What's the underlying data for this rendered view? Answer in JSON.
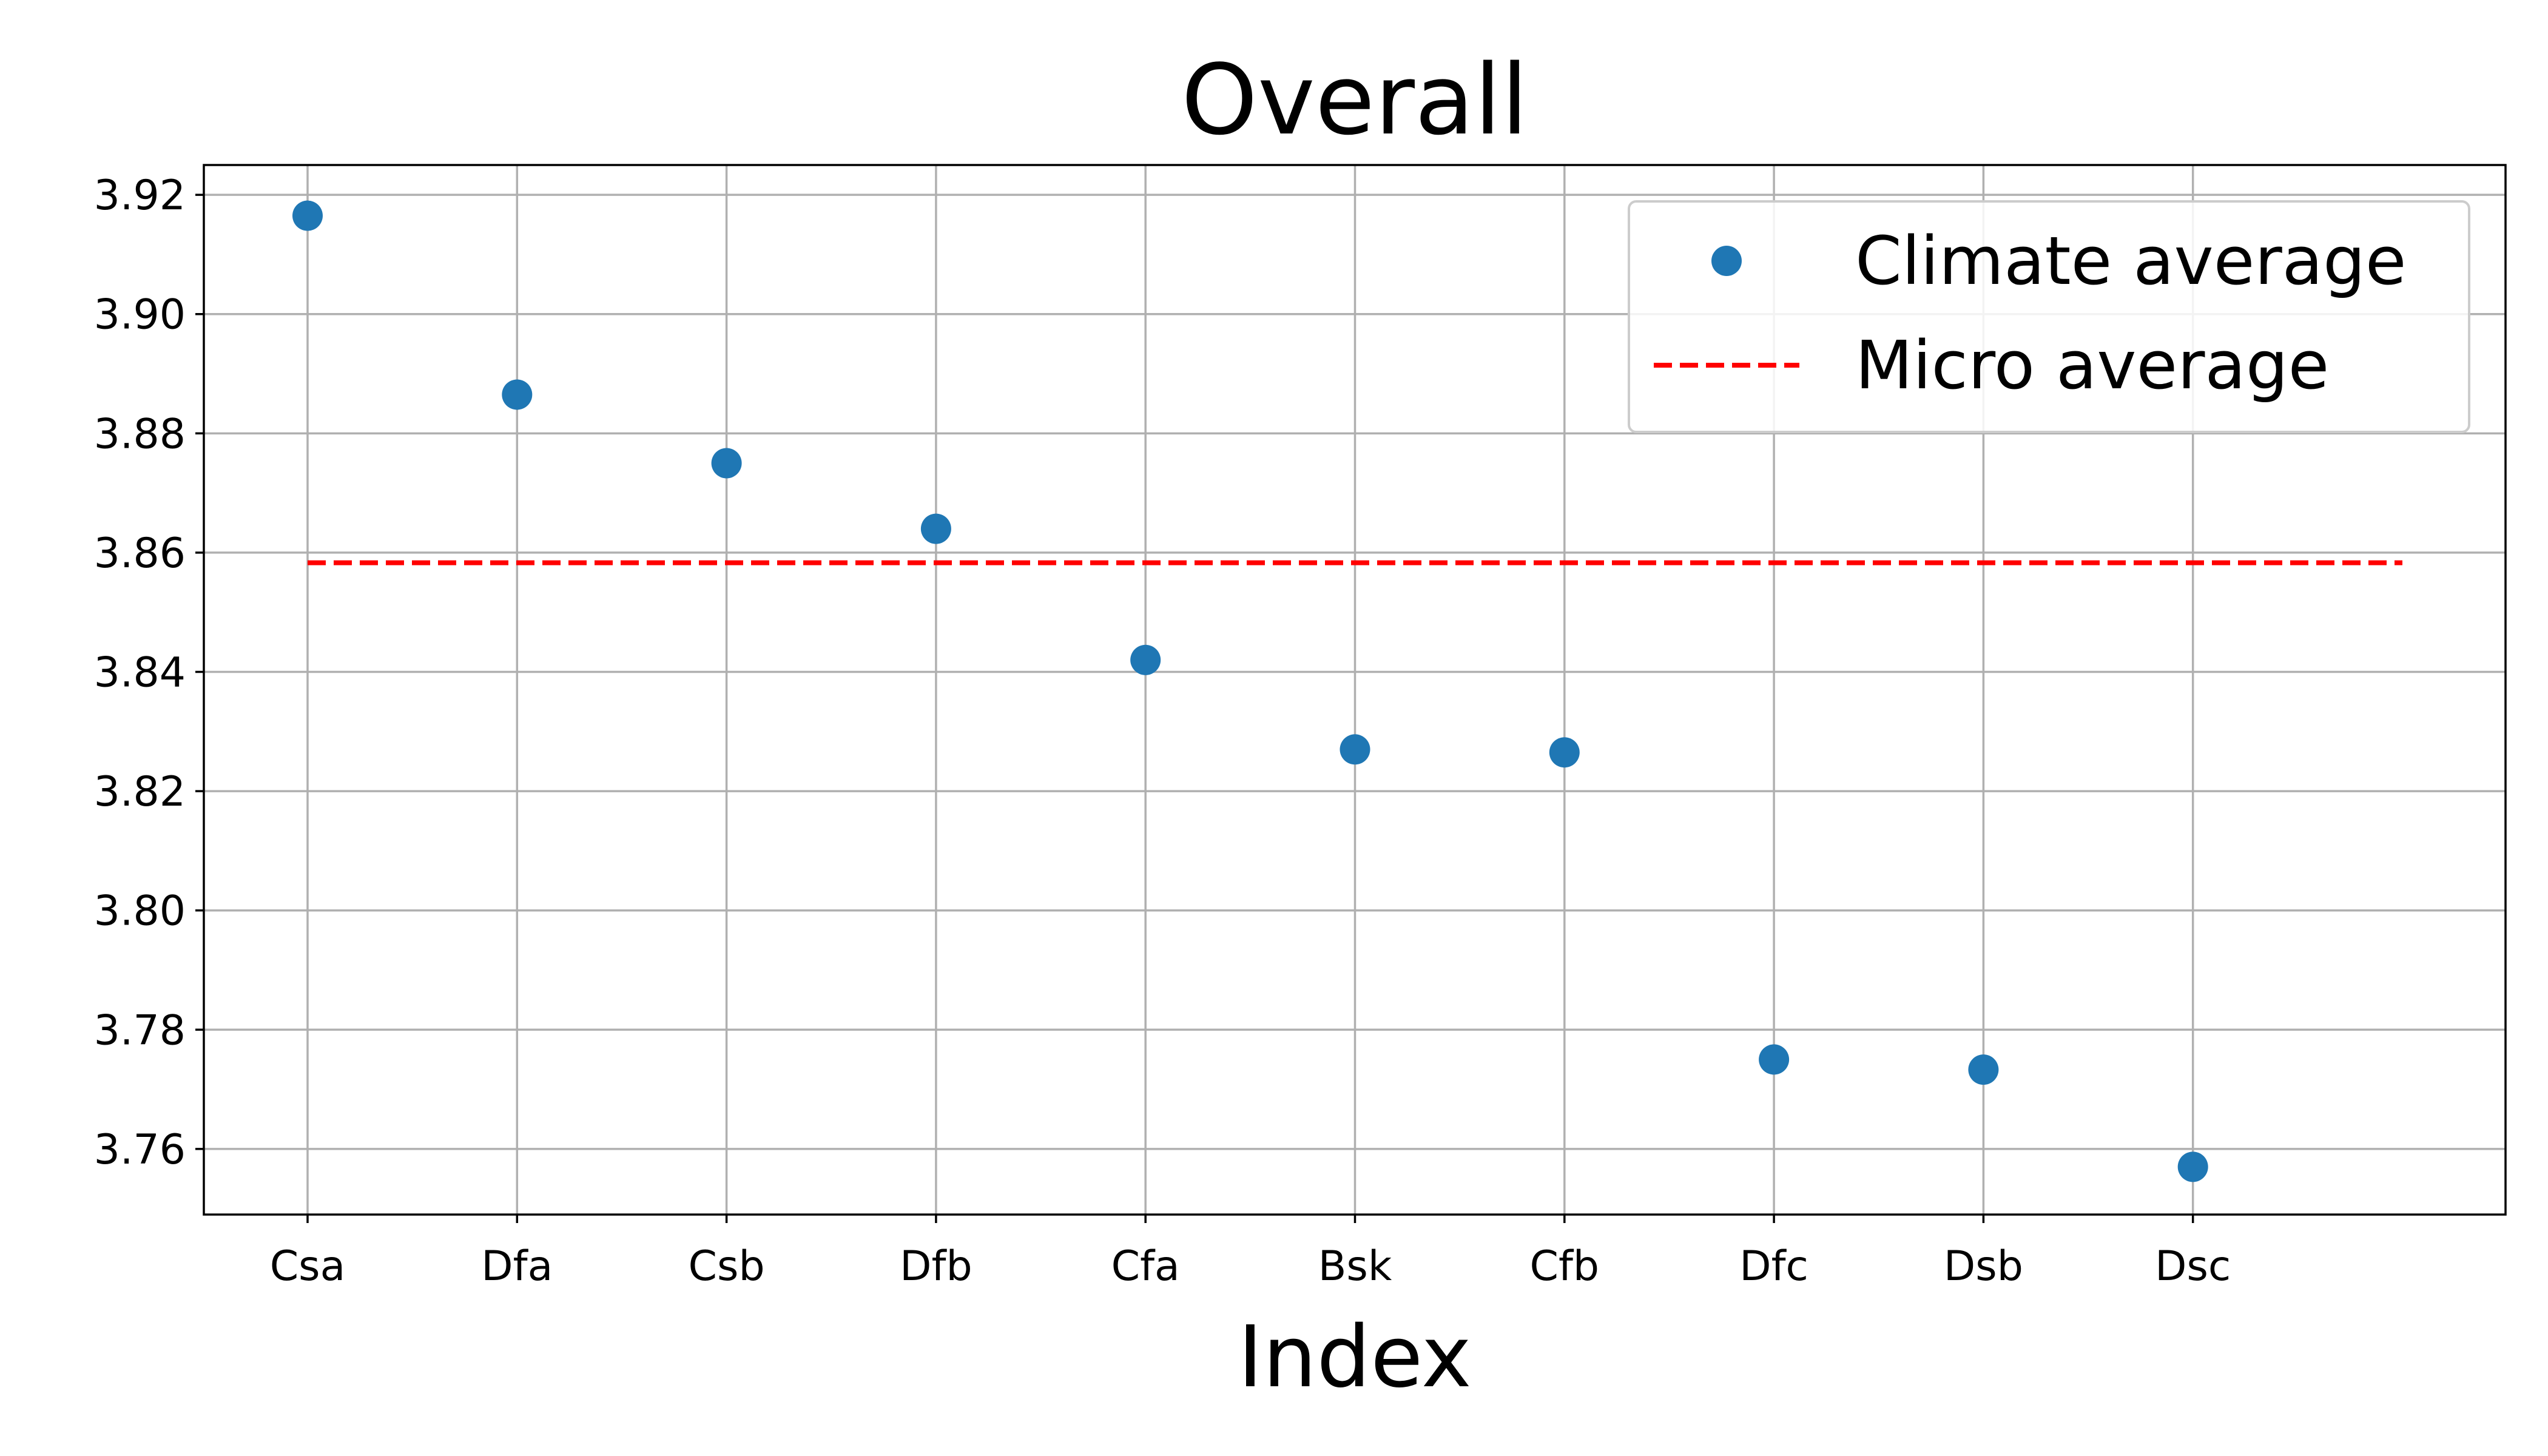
{
  "chart_data": {
    "type": "scatter",
    "title": "Overall",
    "xlabel": "Index",
    "ylabel": "",
    "categories": [
      "Csa",
      "Dfa",
      "Csb",
      "Dfb",
      "Cfa",
      "Bsk",
      "Cfb",
      "Dfc",
      "Dsb",
      "Dsc"
    ],
    "series": [
      {
        "name": "Climate average",
        "kind": "markers",
        "color": "#1f77b4",
        "values": [
          3.9165,
          3.8865,
          3.875,
          3.864,
          3.842,
          3.827,
          3.8265,
          3.775,
          3.7733,
          3.757
        ]
      },
      {
        "name": "Micro average",
        "kind": "dashed-line",
        "color": "#ff0000",
        "value": 3.8583
      }
    ],
    "ylim": [
      3.749,
      3.925
    ],
    "yticks": [
      3.76,
      3.78,
      3.8,
      3.82,
      3.84,
      3.86,
      3.88,
      3.9,
      3.92
    ],
    "ytick_labels": [
      "3.76",
      "3.78",
      "3.80",
      "3.82",
      "3.84",
      "3.86",
      "3.88",
      "3.90",
      "3.92"
    ],
    "grid": true,
    "legend_position": "top-right"
  }
}
